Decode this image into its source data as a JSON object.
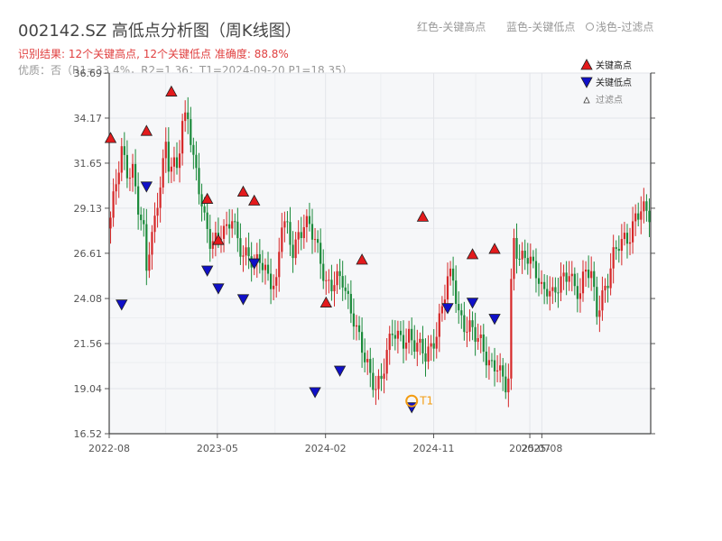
{
  "header": {
    "title": "002142.SZ 高低点分析图（周K线图）",
    "result_line": "识别结果: 12个关键高点, 12个关键低点   准确度: 88.8%",
    "quality_line": "优质：否（R1=33.4%，R2=1.36；T1=2024-09-20 P1=18.35）",
    "legend_high": "红色-关键高点",
    "legend_low": "蓝色-关键低点",
    "legend_filtered": "浅色-过滤点"
  },
  "colors": {
    "up": "#d62728",
    "down": "#1a8a3a",
    "high_marker": "#e31a1c",
    "low_marker": "#1010c8",
    "t1": "#f39c12",
    "plot_bg": "#f6f7f9"
  },
  "chart_data": {
    "type": "candlestick",
    "y_ticks": [
      "16.52",
      "19.04",
      "21.56",
      "24.08",
      "26.61",
      "29.13",
      "31.65",
      "34.17",
      "36.69"
    ],
    "ylim": [
      16.52,
      36.69
    ],
    "x_ticks": [
      "2022-08",
      "2023-05",
      "2024-02",
      "2024-11",
      "2025-07",
      "2025-08"
    ],
    "legend": [
      "关键高点",
      "关键低点",
      "过滤点"
    ],
    "legend_placement": "top-right",
    "grid": true,
    "t1": {
      "label": "T1",
      "date": "2024-09-20",
      "price": 18.35
    },
    "key_highs": [
      {
        "date": "2022-08",
        "price": 32.7
      },
      {
        "date": "2022-11",
        "price": 33.1
      },
      {
        "date": "2023-01",
        "price": 35.3
      },
      {
        "date": "2023-04",
        "price": 29.3
      },
      {
        "date": "2023-05",
        "price": 27.0
      },
      {
        "date": "2023-07",
        "price": 29.7
      },
      {
        "date": "2023-08",
        "price": 29.2
      },
      {
        "date": "2024-02",
        "price": 23.5
      },
      {
        "date": "2024-05",
        "price": 25.9
      },
      {
        "date": "2024-10",
        "price": 28.3
      },
      {
        "date": "2025-02",
        "price": 26.2
      },
      {
        "date": "2025-04",
        "price": 26.5
      }
    ],
    "key_lows": [
      {
        "date": "2022-09",
        "price": 24.1
      },
      {
        "date": "2022-11",
        "price": 30.7
      },
      {
        "date": "2023-04",
        "price": 26.0
      },
      {
        "date": "2023-05",
        "price": 25.0
      },
      {
        "date": "2023-07",
        "price": 24.4
      },
      {
        "date": "2023-08",
        "price": 26.4
      },
      {
        "date": "2024-01",
        "price": 19.2
      },
      {
        "date": "2024-03",
        "price": 20.4
      },
      {
        "date": "2024-09",
        "price": 18.35
      },
      {
        "date": "2024-12",
        "price": 23.9
      },
      {
        "date": "2025-02",
        "price": 24.2
      },
      {
        "date": "2025-04",
        "price": 23.3
      }
    ],
    "close_path": [
      [
        0,
        28.6
      ],
      [
        2,
        30.3
      ],
      [
        4,
        32.2
      ],
      [
        6,
        31.3
      ],
      [
        8,
        31.5
      ],
      [
        10,
        29.2
      ],
      [
        12,
        27.5
      ],
      [
        13,
        25.4
      ],
      [
        14,
        26.8
      ],
      [
        16,
        28.5
      ],
      [
        18,
        30.9
      ],
      [
        20,
        32.6
      ],
      [
        21,
        31.4
      ],
      [
        22,
        31.3
      ],
      [
        24,
        31.2
      ],
      [
        26,
        34.1
      ],
      [
        28,
        34.6
      ],
      [
        30,
        31.8
      ],
      [
        32,
        30.0
      ],
      [
        34,
        28.3
      ],
      [
        36,
        27.5
      ],
      [
        38,
        27.6
      ],
      [
        40,
        27.8
      ],
      [
        42,
        27.6
      ],
      [
        44,
        28.5
      ],
      [
        46,
        27.5
      ],
      [
        48,
        26.8
      ],
      [
        50,
        26.5
      ],
      [
        52,
        25.6
      ],
      [
        54,
        26.2
      ],
      [
        56,
        25.8
      ],
      [
        58,
        25.3
      ],
      [
        60,
        24.8
      ],
      [
        62,
        28.2
      ],
      [
        64,
        27.8
      ],
      [
        66,
        26.9
      ],
      [
        68,
        27.8
      ],
      [
        70,
        28.2
      ],
      [
        72,
        27.9
      ],
      [
        74,
        27.2
      ],
      [
        76,
        26.4
      ],
      [
        78,
        25.1
      ],
      [
        80,
        24.8
      ],
      [
        82,
        24.9
      ],
      [
        84,
        25.0
      ],
      [
        86,
        24.1
      ],
      [
        88,
        23.2
      ],
      [
        90,
        21.8
      ],
      [
        92,
        20.5
      ],
      [
        94,
        19.6
      ],
      [
        96,
        19.3
      ],
      [
        98,
        19.9
      ],
      [
        100,
        21.0
      ],
      [
        102,
        22.0
      ],
      [
        104,
        21.8
      ],
      [
        106,
        21.9
      ],
      [
        108,
        22.2
      ],
      [
        110,
        21.5
      ],
      [
        112,
        21.1
      ],
      [
        114,
        20.8
      ],
      [
        116,
        21.5
      ],
      [
        118,
        22.4
      ],
      [
        120,
        23.5
      ],
      [
        122,
        25.0
      ],
      [
        124,
        25.1
      ],
      [
        126,
        23.4
      ],
      [
        128,
        22.8
      ],
      [
        130,
        22.4
      ],
      [
        132,
        21.8
      ],
      [
        134,
        21.5
      ],
      [
        136,
        21.0
      ],
      [
        138,
        20.5
      ],
      [
        140,
        20.3
      ],
      [
        142,
        19.2
      ],
      [
        143,
        19.0
      ],
      [
        144,
        19.6
      ],
      [
        145,
        24.8
      ],
      [
        146,
        27.7
      ],
      [
        148,
        26.4
      ],
      [
        150,
        26.5
      ],
      [
        152,
        25.8
      ],
      [
        154,
        25.5
      ],
      [
        156,
        24.8
      ],
      [
        158,
        24.9
      ],
      [
        160,
        24.2
      ],
      [
        162,
        24.5
      ],
      [
        164,
        25.1
      ],
      [
        166,
        25.8
      ],
      [
        168,
        24.9
      ],
      [
        170,
        24.3
      ],
      [
        172,
        25.5
      ],
      [
        174,
        25.3
      ],
      [
        176,
        23.6
      ],
      [
        178,
        24.4
      ],
      [
        180,
        25.0
      ],
      [
        182,
        26.2
      ],
      [
        184,
        27.1
      ],
      [
        186,
        27.6
      ],
      [
        188,
        27.8
      ],
      [
        190,
        28.5
      ],
      [
        192,
        28.8
      ],
      [
        195,
        28.9
      ]
    ]
  }
}
